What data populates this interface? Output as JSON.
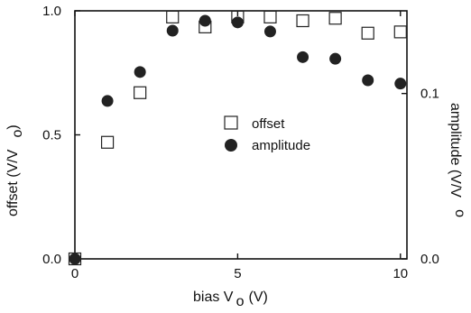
{
  "chart_data": {
    "type": "scatter",
    "xlabel": "bias V",
    "xlabel_sub": "o",
    "xlabel_unit": "(V)",
    "ylabel_left": "offset (V/V",
    "ylabel_left_sub": "o",
    "ylabel_left_end": ")",
    "ylabel_right": "amplitude (V/V",
    "ylabel_right_sub": "o",
    "xlim": [
      0,
      10.2
    ],
    "ylim_left": [
      0,
      1
    ],
    "ylim_right": [
      0,
      0.15
    ],
    "x_ticks": [
      {
        "value": 0,
        "label": "0"
      },
      {
        "value": 5,
        "label": "5"
      },
      {
        "value": 10,
        "label": "10"
      }
    ],
    "left_ticks": [
      {
        "value": 0,
        "label": "0.0"
      },
      {
        "value": 0.5,
        "label": "0.5"
      },
      {
        "value": 1.0,
        "label": "1.0"
      }
    ],
    "right_ticks": [
      {
        "value": 0,
        "label": "0.0"
      },
      {
        "value": 0.1,
        "label": "0.1"
      }
    ],
    "grid": false,
    "legend_position": "center",
    "series": [
      {
        "name": "offset",
        "axis": "left",
        "marker": "open-square",
        "points": [
          {
            "x": 0,
            "y": 0.0
          },
          {
            "x": 1,
            "y": 0.47
          },
          {
            "x": 2,
            "y": 0.67
          },
          {
            "x": 3,
            "y": 0.975
          },
          {
            "x": 4,
            "y": 0.935
          },
          {
            "x": 5,
            "y": 0.975
          },
          {
            "x": 6,
            "y": 0.975
          },
          {
            "x": 7,
            "y": 0.96
          },
          {
            "x": 8,
            "y": 0.97
          },
          {
            "x": 9,
            "y": 0.91
          },
          {
            "x": 10,
            "y": 0.915
          }
        ]
      },
      {
        "name": "amplitude",
        "axis": "right",
        "marker": "filled-circle",
        "points": [
          {
            "x": 0,
            "y": 0.0
          },
          {
            "x": 1,
            "y": 0.0955
          },
          {
            "x": 2,
            "y": 0.113
          },
          {
            "x": 3,
            "y": 0.138
          },
          {
            "x": 4,
            "y": 0.144
          },
          {
            "x": 5,
            "y": 0.143
          },
          {
            "x": 6,
            "y": 0.1375
          },
          {
            "x": 7,
            "y": 0.122
          },
          {
            "x": 8,
            "y": 0.121
          },
          {
            "x": 9,
            "y": 0.108
          },
          {
            "x": 10,
            "y": 0.106
          }
        ]
      }
    ]
  }
}
